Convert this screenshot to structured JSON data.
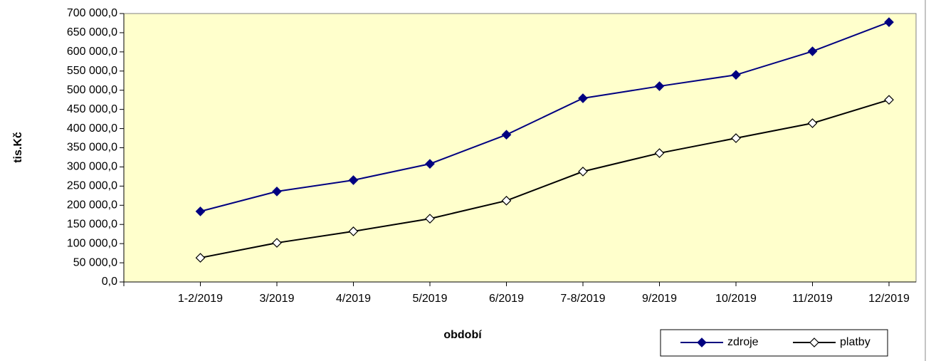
{
  "chart_data": {
    "type": "line",
    "categories": [
      "1-2/2019",
      "3/2019",
      "4/2019",
      "5/2019",
      "6/2019",
      "7-8/2019",
      "9/2019",
      "10/2019",
      "11/2019",
      "12/2019"
    ],
    "series": [
      {
        "name": "zdroje",
        "color": "#000080",
        "marker_fill": "#000080",
        "values": [
          184000,
          236000,
          265500,
          308000,
          384000,
          479000,
          510500,
          540000,
          601500,
          677500
        ]
      },
      {
        "name": "platby",
        "color": "#000000",
        "marker_fill": "#ffffff",
        "values": [
          63000,
          102000,
          132000,
          165000,
          212000,
          288000,
          336000,
          375000,
          414000,
          475000
        ]
      }
    ],
    "xlabel": "období",
    "ylabel": "tis.Kč",
    "ylim": [
      0,
      700000
    ],
    "yticks": [
      {
        "value": 0,
        "label": "0,0"
      },
      {
        "value": 50000,
        "label": "50 000,0"
      },
      {
        "value": 100000,
        "label": "100 000,0"
      },
      {
        "value": 150000,
        "label": "150 000,0"
      },
      {
        "value": 200000,
        "label": "200 000,0"
      },
      {
        "value": 250000,
        "label": "250 000,0"
      },
      {
        "value": 300000,
        "label": "300 000,0"
      },
      {
        "value": 350000,
        "label": "350 000,0"
      },
      {
        "value": 400000,
        "label": "400 000,0"
      },
      {
        "value": 450000,
        "label": "450 000,0"
      },
      {
        "value": 500000,
        "label": "500 000,0"
      },
      {
        "value": 550000,
        "label": "550 000,0"
      },
      {
        "value": 600000,
        "label": "600 000,0"
      },
      {
        "value": 650000,
        "label": "650 000,0"
      },
      {
        "value": 700000,
        "label": "700 000,0"
      }
    ],
    "plot_background": "#ffffcc",
    "legend": "lower right"
  }
}
